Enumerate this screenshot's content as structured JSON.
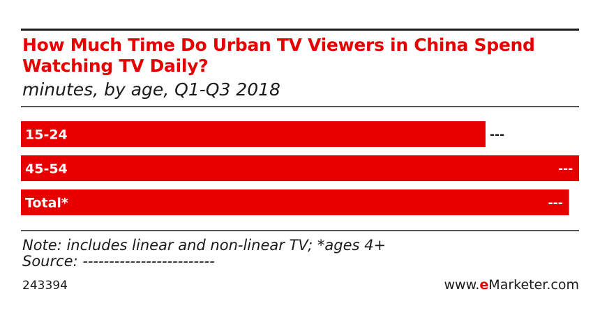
{
  "chart_data": {
    "type": "bar",
    "orientation": "horizontal",
    "title": "How Much Time Do Urban TV Viewers in China Spend Watching TV Daily?",
    "subtitle": "minutes, by age, Q1-Q3 2018",
    "categories": [
      "15-24",
      "45-54",
      "Total*"
    ],
    "values": [
      139,
      167,
      164
    ],
    "value_labels": [
      "---",
      "---",
      "---"
    ],
    "xlim": [
      0,
      167
    ],
    "grid": false,
    "legend": "none",
    "bar_color": "#e60000"
  },
  "footer": {
    "note": "Note: includes linear and non-linear TV; *ages 4+",
    "source": "Source: -------------------------",
    "chart_id": "243394",
    "brand_prefix": "www.",
    "brand_e": "e",
    "brand_rest": "Marketer.com"
  }
}
